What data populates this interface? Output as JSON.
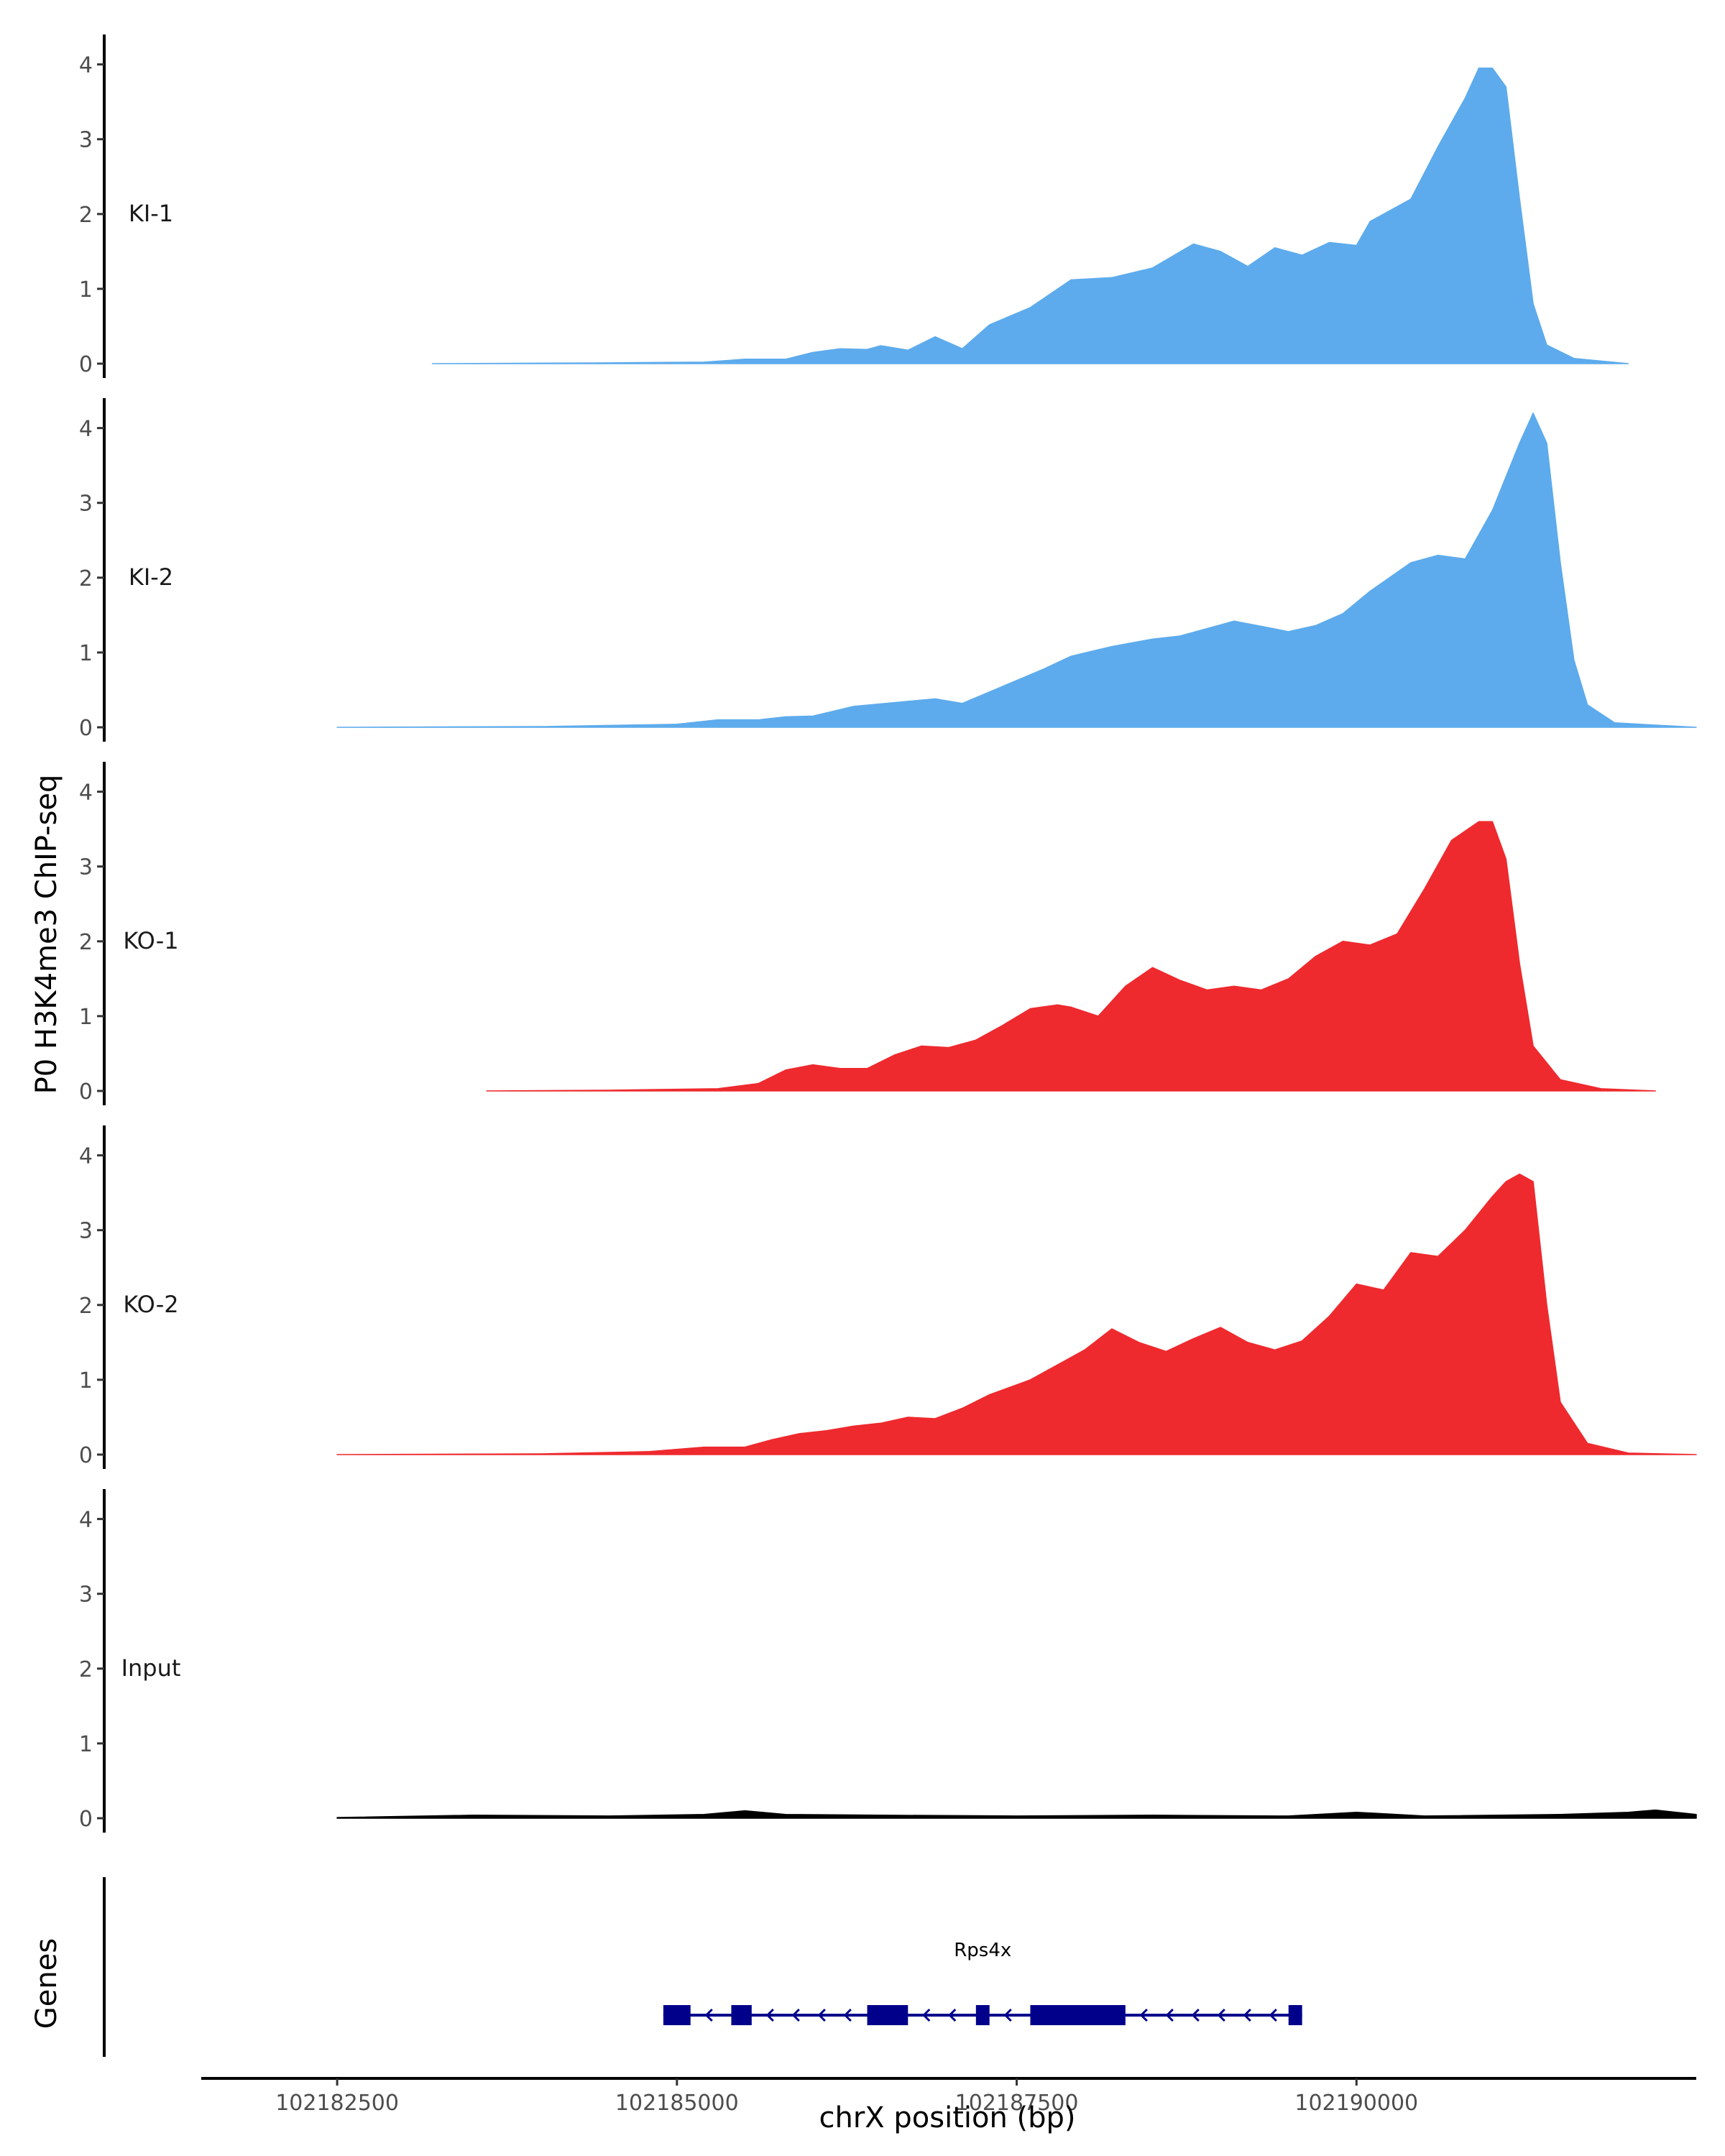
{
  "chart_data": {
    "type": "area",
    "title": "",
    "ylabel": "P0 H3K4me3 ChIP-seq",
    "xlabel": "chrX position (bp)",
    "genes_label": "Genes",
    "xlim": [
      102181500,
      102192500
    ],
    "ylim": [
      0,
      4.4
    ],
    "x_ticks": [
      102182500,
      102185000,
      102187500,
      102190000
    ],
    "x_tick_labels": [
      "102182500",
      "102185000",
      "102187500",
      "102190000"
    ],
    "y_ticks": [
      0,
      1,
      2,
      3,
      4
    ],
    "y_tick_labels": [
      "0",
      "1",
      "2",
      "3",
      "4"
    ],
    "colors": {
      "KI": "#5dabec",
      "KO": "#ee2a2e",
      "Input": "#000000",
      "gene": "#00008b"
    },
    "series": [
      {
        "name": "KI-1",
        "color": "#5dabec",
        "points": [
          [
            102183200,
            0
          ],
          [
            102184400,
            0.01
          ],
          [
            102185200,
            0.02
          ],
          [
            102185500,
            0.06
          ],
          [
            102185800,
            0.06
          ],
          [
            102186000,
            0.15
          ],
          [
            102186200,
            0.2
          ],
          [
            102186400,
            0.19
          ],
          [
            102186500,
            0.24
          ],
          [
            102186700,
            0.18
          ],
          [
            102186900,
            0.36
          ],
          [
            102187100,
            0.2
          ],
          [
            102187300,
            0.52
          ],
          [
            102187600,
            0.75
          ],
          [
            102187900,
            1.12
          ],
          [
            102188200,
            1.15
          ],
          [
            102188500,
            1.28
          ],
          [
            102188800,
            1.6
          ],
          [
            102189000,
            1.5
          ],
          [
            102189200,
            1.3
          ],
          [
            102189400,
            1.55
          ],
          [
            102189600,
            1.45
          ],
          [
            102189800,
            1.62
          ],
          [
            102190000,
            1.58
          ],
          [
            102190100,
            1.9
          ],
          [
            102190400,
            2.2
          ],
          [
            102190500,
            2.55
          ],
          [
            102190600,
            2.9
          ],
          [
            102190800,
            3.55
          ],
          [
            102190900,
            3.95
          ],
          [
            102191000,
            3.95
          ],
          [
            102191100,
            3.7
          ],
          [
            102191200,
            2.2
          ],
          [
            102191300,
            0.8
          ],
          [
            102191400,
            0.25
          ],
          [
            102191600,
            0.07
          ],
          [
            102192000,
            0
          ]
        ]
      },
      {
        "name": "KI-2",
        "color": "#5dabec",
        "points": [
          [
            102182500,
            0
          ],
          [
            102184000,
            0.01
          ],
          [
            102185000,
            0.04
          ],
          [
            102185300,
            0.1
          ],
          [
            102185600,
            0.1
          ],
          [
            102185800,
            0.14
          ],
          [
            102186000,
            0.15
          ],
          [
            102186300,
            0.28
          ],
          [
            102186600,
            0.33
          ],
          [
            102186900,
            0.38
          ],
          [
            102187100,
            0.32
          ],
          [
            102187400,
            0.55
          ],
          [
            102187700,
            0.78
          ],
          [
            102187900,
            0.95
          ],
          [
            102188200,
            1.08
          ],
          [
            102188500,
            1.18
          ],
          [
            102188700,
            1.22
          ],
          [
            102188900,
            1.32
          ],
          [
            102189100,
            1.42
          ],
          [
            102189300,
            1.35
          ],
          [
            102189500,
            1.28
          ],
          [
            102189700,
            1.36
          ],
          [
            102189900,
            1.52
          ],
          [
            102190100,
            1.82
          ],
          [
            102190400,
            2.2
          ],
          [
            102190600,
            2.3
          ],
          [
            102190800,
            2.25
          ],
          [
            102191000,
            2.9
          ],
          [
            102191200,
            3.8
          ],
          [
            102191300,
            4.2
          ],
          [
            102191400,
            3.8
          ],
          [
            102191500,
            2.2
          ],
          [
            102191600,
            0.9
          ],
          [
            102191700,
            0.3
          ],
          [
            102191900,
            0.06
          ],
          [
            102192500,
            0
          ]
        ]
      },
      {
        "name": "KO-1",
        "color": "#ee2a2e",
        "points": [
          [
            102183600,
            0
          ],
          [
            102184500,
            0.01
          ],
          [
            102185300,
            0.03
          ],
          [
            102185600,
            0.1
          ],
          [
            102185800,
            0.28
          ],
          [
            102186000,
            0.35
          ],
          [
            102186200,
            0.3
          ],
          [
            102186400,
            0.3
          ],
          [
            102186600,
            0.48
          ],
          [
            102186800,
            0.6
          ],
          [
            102187000,
            0.58
          ],
          [
            102187200,
            0.68
          ],
          [
            102187400,
            0.88
          ],
          [
            102187600,
            1.1
          ],
          [
            102187800,
            1.15
          ],
          [
            102187900,
            1.12
          ],
          [
            102188100,
            1.0
          ],
          [
            102188300,
            1.4
          ],
          [
            102188500,
            1.65
          ],
          [
            102188700,
            1.48
          ],
          [
            102188900,
            1.35
          ],
          [
            102189100,
            1.4
          ],
          [
            102189300,
            1.35
          ],
          [
            102189500,
            1.5
          ],
          [
            102189700,
            1.8
          ],
          [
            102189900,
            2.0
          ],
          [
            102190100,
            1.95
          ],
          [
            102190300,
            2.1
          ],
          [
            102190500,
            2.7
          ],
          [
            102190700,
            3.35
          ],
          [
            102190900,
            3.6
          ],
          [
            102191000,
            3.6
          ],
          [
            102191100,
            3.1
          ],
          [
            102191200,
            1.7
          ],
          [
            102191300,
            0.6
          ],
          [
            102191500,
            0.15
          ],
          [
            102191800,
            0.03
          ],
          [
            102192200,
            0
          ]
        ]
      },
      {
        "name": "KO-2",
        "color": "#ee2a2e",
        "points": [
          [
            102182500,
            0
          ],
          [
            102184000,
            0.01
          ],
          [
            102184800,
            0.04
          ],
          [
            102185200,
            0.1
          ],
          [
            102185500,
            0.1
          ],
          [
            102185700,
            0.2
          ],
          [
            102185900,
            0.28
          ],
          [
            102186100,
            0.32
          ],
          [
            102186300,
            0.38
          ],
          [
            102186500,
            0.42
          ],
          [
            102186700,
            0.5
          ],
          [
            102186900,
            0.48
          ],
          [
            102187100,
            0.62
          ],
          [
            102187300,
            0.8
          ],
          [
            102187600,
            1.0
          ],
          [
            102187800,
            1.2
          ],
          [
            102188000,
            1.4
          ],
          [
            102188200,
            1.68
          ],
          [
            102188400,
            1.5
          ],
          [
            102188600,
            1.38
          ],
          [
            102188800,
            1.55
          ],
          [
            102189000,
            1.7
          ],
          [
            102189200,
            1.5
          ],
          [
            102189400,
            1.4
          ],
          [
            102189600,
            1.52
          ],
          [
            102189800,
            1.85
          ],
          [
            102190000,
            2.28
          ],
          [
            102190200,
            2.2
          ],
          [
            102190400,
            2.7
          ],
          [
            102190600,
            2.65
          ],
          [
            102190800,
            3.0
          ],
          [
            102191000,
            3.45
          ],
          [
            102191100,
            3.65
          ],
          [
            102191200,
            3.75
          ],
          [
            102191300,
            3.65
          ],
          [
            102191400,
            2.0
          ],
          [
            102191500,
            0.7
          ],
          [
            102191700,
            0.15
          ],
          [
            102192000,
            0.02
          ],
          [
            102192500,
            0
          ]
        ]
      },
      {
        "name": "Input",
        "color": "#000000",
        "points": [
          [
            102182500,
            0.01
          ],
          [
            102183500,
            0.04
          ],
          [
            102184500,
            0.03
          ],
          [
            102185200,
            0.05
          ],
          [
            102185500,
            0.1
          ],
          [
            102185800,
            0.05
          ],
          [
            102186500,
            0.04
          ],
          [
            102187500,
            0.03
          ],
          [
            102188500,
            0.04
          ],
          [
            102189500,
            0.03
          ],
          [
            102190000,
            0.08
          ],
          [
            102190500,
            0.03
          ],
          [
            102191500,
            0.05
          ],
          [
            102192000,
            0.08
          ],
          [
            102192200,
            0.11
          ],
          [
            102192500,
            0.05
          ]
        ]
      }
    ],
    "gene": {
      "name": "Rps4x",
      "strand": "-",
      "start": 102184900,
      "end": 102189600,
      "exons": [
        [
          102184900,
          102185100
        ],
        [
          102185400,
          102185550
        ],
        [
          102186400,
          102186700
        ],
        [
          102187200,
          102187300
        ],
        [
          102187600,
          102188300
        ],
        [
          102189500,
          102189600
        ]
      ]
    }
  }
}
